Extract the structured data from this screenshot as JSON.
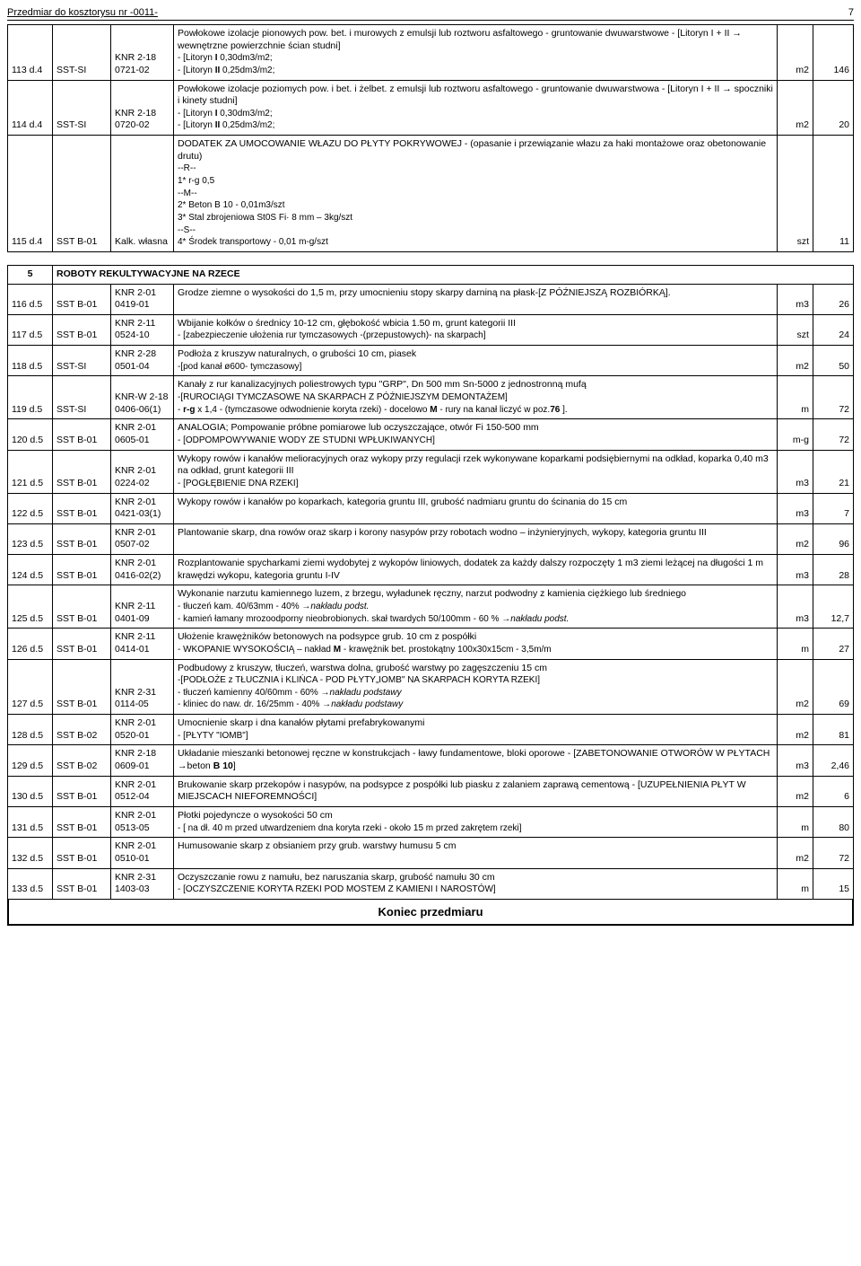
{
  "header": {
    "title": "Przedmiar do kosztorysu nr -0011-",
    "page": "7"
  },
  "rows": [
    {
      "id": "113 d.4",
      "sst": "SST-SI",
      "knr": "KNR 2-18 0721-02",
      "desc": "Powłokowe izolacje pionowych pow. bet. i murowych z emulsji lub roztworu asfaltowego - gruntowanie dwuwarstwowe - [Litoryn  I + II → wewnętrzne powierzchnie ścian studni]<br><span class='desc-sub'>- [Litoryn <b>I</b>  0,30dm3/m2;<br>- [Litoryn <b>II</b>  0,25dm3/m2;</span>",
      "unit": "m2",
      "qty": "146"
    },
    {
      "id": "114 d.4",
      "sst": "SST-SI",
      "knr": "KNR 2-18 0720-02",
      "desc": "Powłokowe izolacje poziomych pow. i bet. i żelbet. z emulsji lub roztworu asfaltowego - gruntowanie dwuwarstwowa - [Litoryn  I + II → spoczniki i kinety studni]<br><span class='desc-sub'>- [Litoryn <b>I</b>  0,30dm3/m2;<br>- [Litoryn <b>II</b>  0,25dm3/m2;</span>",
      "unit": "m2",
      "qty": "20"
    },
    {
      "id": "115 d.4",
      "sst": "SST B-01",
      "knr": "Kalk. własna",
      "desc": "DODATEK ZA UMOCOWANIE WŁAZU DO PŁYTY POKRYWOWEJ - (opasanie i przewiązanie włazu za haki montażowe oraz obetonowanie drutu)<br><span class='desc-sub'>--R--<br>1* r-g  0,5<br>--M--<br>2* Beton  B 10  - 0,01m3/szt<br>3* Stal zbrojeniowa St0S  Fi· 8 mm – 3kg/szt<br>--S--<br>4* Środek transportowy - 0,01 m-g/szt</span>",
      "unit": "szt",
      "qty": "11"
    }
  ],
  "section": {
    "num": "5",
    "title": "ROBOTY REKULTYWACYJNE NA RZECE"
  },
  "rows2": [
    {
      "id": "116 d.5",
      "sst": "SST B-01",
      "knr": "KNR 2-01 0419-01",
      "desc": "Grodze ziemne o wysokości do 1,5 m, przy umocnieniu stopy skarpy darniną na płask-[Z PÓŹNIEJSZĄ ROZBIÓRKĄ].",
      "unit": "m3",
      "qty": "26"
    },
    {
      "id": "117 d.5",
      "sst": "SST B-01",
      "knr": "KNR 2-11 0524-10",
      "desc": "Wbijanie kołków o średnicy 10-12 cm, głębokość wbicia 1.50 m, grunt kategorii III<br><span class='desc-sub'>- [zabezpieczenie ułożenia rur tymczasowych -(przepustowych)- na skarpach]</span>",
      "unit": "szt",
      "qty": "24"
    },
    {
      "id": "118 d.5",
      "sst": "SST-SI",
      "knr": "KNR 2-28 0501-04",
      "desc": "Podłoża z kruszyw naturalnych, o grubości 10 cm, piasek<br><span class='desc-sub'>-[pod kanał ø600- tymczasowy]</span>",
      "unit": "m2",
      "qty": "50"
    },
    {
      "id": "119 d.5",
      "sst": "SST-SI",
      "knr": "KNR-W 2-18 0406-06(1)",
      "desc": "Kanały z rur kanalizacyjnych poliestrowych typu \"GRP\", Dn 500 mm Sn-5000 z jednostronną mufą<br><span class='desc-sub'>-[RUROCIĄGI TYMCZASOWE NA SKARPACH Z PÓŹNIEJSZYM DEMONTAŻEM]<br>- <b>r-g</b> x 1,4 - (tymczasowe odwodnienie koryta rzeki) - docelowo <b>M</b> - rury na kanał liczyć w poz.<b>76</b> ].</span>",
      "unit": "m",
      "qty": "72"
    },
    {
      "id": "120 d.5",
      "sst": "SST B-01",
      "knr": "KNR 2-01 0605-01",
      "desc": "ANALOGIA; Pompowanie próbne pomiarowe lub oczyszczające, otwór Fi 150-500 mm<br><span class='desc-sub'>- [ODPOMPOWYWANIE WODY ZE STUDNI WPŁUKIWANYCH]</span>",
      "unit": "m-g",
      "qty": "72"
    },
    {
      "id": "121 d.5",
      "sst": "SST B-01",
      "knr": "KNR 2-01 0224-02",
      "desc": "Wykopy rowów i kanałów melioracyjnych oraz wykopy przy regulacji rzek wykonywane koparkami podsiębiernymi na odkład, koparka 0,40 m3 na odkład, grunt kategorii III<br><span class='desc-sub'>- [POGŁĘBIENIE DNA RZEKI]</span>",
      "unit": "m3",
      "qty": "21"
    },
    {
      "id": "122 d.5",
      "sst": "SST B-01",
      "knr": "KNR 2-01 0421-03(1)",
      "desc": "Wykopy rowów i kanałów po koparkach, kategoria gruntu III, grubość nadmiaru gruntu do ścinania do 15 cm",
      "unit": "m3",
      "qty": "7"
    },
    {
      "id": "123 d.5",
      "sst": "SST B-01",
      "knr": "KNR 2-01 0507-02",
      "desc": "Plantowanie skarp, dna rowów oraz skarp i korony nasypów przy robotach wodno – inżynieryjnych, wykopy, kategoria gruntu III",
      "unit": "m2",
      "qty": "96"
    },
    {
      "id": "124 d.5",
      "sst": "SST B-01",
      "knr": "KNR 2-01 0416-02(2)",
      "desc": "Rozplantowanie spycharkami ziemi wydobytej z wykopów liniowych, dodatek za każdy dalszy rozpoczęty 1 m3 ziemi leżącej na długości 1 m krawędzi wykopu, kategoria gruntu I-IV",
      "unit": "m3",
      "qty": "28"
    },
    {
      "id": "125 d.5",
      "sst": "SST B-01",
      "knr": "KNR 2-11 0401-09",
      "desc": "Wykonanie narzutu kamiennego luzem, z brzegu, wyładunek ręczny, narzut podwodny z kamienia ciężkiego lub średniego<br><span class='desc-sub'>- tłuczeń kam. 40/63mm - 40% →<i>nakładu podst.</i><br>- kamień łamany mrozoodporny nieobrobionych. skał twardych  50/100mm - 60 % →<i>nakładu podst.</i></span>",
      "unit": "m3",
      "qty": "12,7"
    },
    {
      "id": "126 d.5",
      "sst": "SST B-01",
      "knr": "KNR 2-11 0414-01",
      "desc": "Ułożenie krawężników betonowych na podsypce grub. 10 cm z pospółki<br><span class='desc-sub'>- WKOPANIE WYSOKOŚCIĄ – nakład <b>M</b> - krawężnik bet. prostokątny 100x30x15cm - 3,5m/m</span>",
      "unit": "m",
      "qty": "27"
    },
    {
      "id": "127 d.5",
      "sst": "SST B-01",
      "knr": "KNR 2-31 0114-05",
      "desc": "Podbudowy z kruszyw, tłuczeń, warstwa dolna, grubość warstwy po zagęszczeniu 15 cm<br><span class='desc-sub'>-[PODŁOŻE z TŁUCZNIA i KLIŃCA - POD PŁYTY„IOMB\" NA SKARPACH KORYTA RZEKI]<br>- tłuczeń kamienny 40/60mm - 60% →<i>nakładu podstawy</i><br>- kliniec do naw. dr. 16/25mm - 40% →<i>nakładu podstawy</i></span>",
      "unit": "m2",
      "qty": "69"
    },
    {
      "id": "128 d.5",
      "sst": "SST B-02",
      "knr": "KNR 2-01 0520-01",
      "desc": "Umocnienie skarp i dna kanałów płytami prefabrykowanymi<br><span class='desc-sub'>- [PŁYTY \"IOMB\"]</span>",
      "unit": "m2",
      "qty": "81"
    },
    {
      "id": "129 d.5",
      "sst": "SST B-02",
      "knr": "KNR 2-18 0609-01",
      "desc": "Układanie mieszanki betonowej ręczne w konstrukcjach - ławy fundamentowe, bloki oporowe  - [ZABETONOWANIE OTWORÓW W PŁYTACH →beton <b>B 10</b>]",
      "unit": "m3",
      "qty": "2,46"
    },
    {
      "id": "130 d.5",
      "sst": "SST B-01",
      "knr": "KNR 2-01 0512-04",
      "desc": "Brukowanie skarp przekopów i nasypów, na podsypce z pospółki lub piasku z zalaniem zaprawą cementową - [UZUPEŁNIENIA PŁYT W MIEJSCACH NIEFOREMNOŚCI]",
      "unit": "m2",
      "qty": "6"
    },
    {
      "id": "131 d.5",
      "sst": "SST B-01",
      "knr": "KNR 2-01 0513-05",
      "desc": "Płotki pojedyncze o wysokości 50 cm<br><span class='desc-sub'>- [ na dł. 40 m przed utwardzeniem dna koryta rzeki - około 15 m przed zakrętem rzeki]</span>",
      "unit": "m",
      "qty": "80"
    },
    {
      "id": "132 d.5",
      "sst": "SST B-01",
      "knr": "KNR 2-01 0510-01",
      "desc": "Humusowanie skarp z obsianiem przy grub. warstwy humusu 5 cm",
      "unit": "m2",
      "qty": "72"
    },
    {
      "id": "133 d.5",
      "sst": "SST B-01",
      "knr": "KNR 2-31 1403-03",
      "desc": "Oczyszczanie rowu z namułu, bez naruszania skarp, grubość namułu 30 cm<br><span class='desc-sub'>- [OCZYSZCZENIE KORYTA RZEKI POD MOSTEM Z KAMIENI I NAROSTÓW]</span>",
      "unit": "m",
      "qty": "15"
    }
  ],
  "footer": "Koniec przedmiaru"
}
